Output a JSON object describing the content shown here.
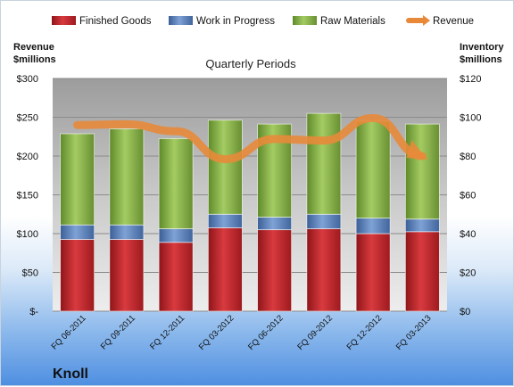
{
  "chart_data": {
    "type": "bar",
    "stacked": true,
    "title": "Quarterly Periods",
    "brand": "Knoll",
    "categories": [
      "FQ 06-2011",
      "FQ 09-2011",
      "FQ 12-2011",
      "FQ 03-2012",
      "FQ 06-2012",
      "FQ 09-2012",
      "FQ 12-2012",
      "FQ 03-2013"
    ],
    "series": [
      {
        "name": "Finished Goods",
        "axis": "right",
        "color": "#c0282d",
        "values": [
          37,
          37,
          35.5,
          43,
          42,
          42.5,
          40,
          41
        ]
      },
      {
        "name": "Work in Progress",
        "axis": "right",
        "color": "#4f79b7",
        "values": [
          7.5,
          7.5,
          7,
          7,
          6.5,
          7.5,
          8,
          6.5
        ]
      },
      {
        "name": "Raw Materials",
        "axis": "right",
        "color": "#86b047",
        "values": [
          47,
          49.5,
          46.5,
          48.5,
          48,
          52,
          50,
          49
        ]
      },
      {
        "name": "Revenue",
        "axis": "left",
        "type": "line",
        "color": "#e8893a",
        "values": [
          240,
          241,
          232,
          196,
          222,
          220,
          249,
          200
        ]
      }
    ],
    "left_axis": {
      "label_lines": [
        "Revenue",
        "$millions"
      ],
      "ylim": [
        0,
        300
      ],
      "ticks": [
        "$-",
        "$50",
        "$100",
        "$150",
        "$200",
        "$250",
        "$300"
      ]
    },
    "right_axis": {
      "label_lines": [
        "Inventory",
        "$millions"
      ],
      "ylim": [
        0,
        120
      ],
      "ticks": [
        "$0",
        "$20",
        "$40",
        "$60",
        "$80",
        "$100",
        "$120"
      ]
    },
    "grid": true,
    "legend": "top"
  }
}
